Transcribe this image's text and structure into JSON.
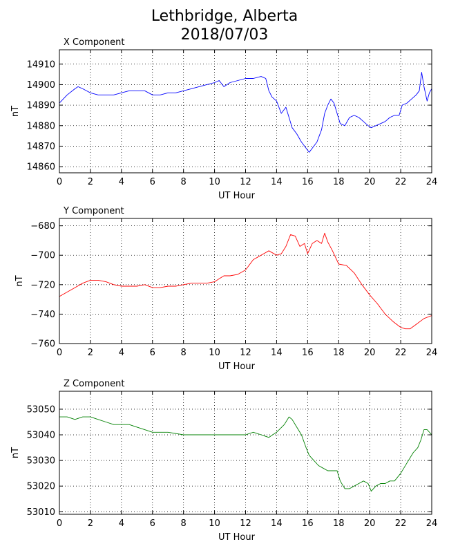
{
  "figure": {
    "title_line1": "Lethbridge, Alberta",
    "title_line2": "2018/07/03"
  },
  "colors": {
    "x": "#0000ff",
    "y": "#ff0000",
    "z": "#008000"
  },
  "chart_data": [
    {
      "type": "line",
      "title": "X Component",
      "xlabel": "UT Hour",
      "ylabel": "nT",
      "xlim": [
        0,
        24
      ],
      "ylim": [
        14857,
        14917
      ],
      "xticks": [
        0,
        2,
        4,
        6,
        8,
        10,
        12,
        14,
        16,
        18,
        20,
        22,
        24
      ],
      "yticks": [
        14860,
        14870,
        14880,
        14890,
        14900,
        14910
      ],
      "grid": true,
      "series": [
        {
          "color": "#0000ff",
          "x": [
            0,
            0.5,
            1,
            1.2,
            1.5,
            2,
            2.5,
            3,
            3.5,
            4,
            4.5,
            5,
            5.5,
            6,
            6.5,
            7,
            7.5,
            8,
            8.5,
            9,
            9.5,
            10,
            10.3,
            10.6,
            11,
            11.5,
            12,
            12.5,
            13,
            13.3,
            13.5,
            13.7,
            14,
            14.3,
            14.6,
            14.8,
            15,
            15.3,
            15.6,
            15.9,
            16.1,
            16.3,
            16.6,
            16.9,
            17.1,
            17.3,
            17.5,
            17.7,
            17.9,
            18.1,
            18.4,
            18.7,
            19,
            19.3,
            19.6,
            19.9,
            20.1,
            20.4,
            20.7,
            21,
            21.3,
            21.6,
            21.9,
            22.1,
            22.4,
            22.7,
            23,
            23.2,
            23.35,
            23.5,
            23.7,
            23.85,
            24
          ],
          "y": [
            14891,
            14895,
            14898,
            14899,
            14898,
            14896,
            14895,
            14895,
            14895,
            14896,
            14897,
            14897,
            14897,
            14895,
            14895,
            14896,
            14896,
            14897,
            14898,
            14899,
            14900,
            14901,
            14902,
            14899,
            14901,
            14902,
            14903,
            14903,
            14904,
            14903,
            14897,
            14894,
            14892,
            14886,
            14889,
            14884,
            14879,
            14876,
            14872,
            14869,
            14867,
            14869,
            14872,
            14878,
            14886,
            14890,
            14893,
            14891,
            14886,
            14881,
            14880,
            14884,
            14885,
            14884,
            14882,
            14880,
            14879,
            14880,
            14881,
            14882,
            14884,
            14885,
            14885,
            14890,
            14891,
            14893,
            14895,
            14897,
            14906,
            14899,
            14892,
            14896,
            14898
          ]
        }
      ]
    },
    {
      "type": "line",
      "title": "Y Component",
      "xlabel": "UT Hour",
      "ylabel": "nT",
      "xlim": [
        0,
        24
      ],
      "ylim": [
        -760,
        -675
      ],
      "xticks": [
        0,
        2,
        4,
        6,
        8,
        10,
        12,
        14,
        16,
        18,
        20,
        22,
        24
      ],
      "yticks": [
        -760,
        -740,
        -720,
        -700,
        -680
      ],
      "grid": true,
      "series": [
        {
          "color": "#ff0000",
          "x": [
            0,
            0.5,
            1,
            1.5,
            2,
            2.5,
            3,
            3.5,
            4,
            4.5,
            5,
            5.5,
            6,
            6.5,
            7,
            7.5,
            8,
            8.5,
            9,
            9.5,
            10,
            10.3,
            10.6,
            11,
            11.5,
            12,
            12.5,
            13,
            13.5,
            14,
            14.3,
            14.6,
            14.9,
            15.2,
            15.5,
            15.8,
            16,
            16.3,
            16.6,
            16.9,
            17.1,
            17.3,
            17.6,
            18,
            18.5,
            19,
            19.5,
            20,
            20.5,
            21,
            21.5,
            22,
            22.3,
            22.6,
            23,
            23.5,
            24
          ],
          "y": [
            -728,
            -725,
            -722,
            -719,
            -717,
            -717,
            -718,
            -720,
            -721,
            -721,
            -721,
            -720,
            -722,
            -722,
            -721,
            -721,
            -720,
            -719,
            -719,
            -719,
            -718,
            -716,
            -714,
            -714,
            -713,
            -710,
            -703,
            -700,
            -697,
            -700,
            -699,
            -694,
            -686,
            -687,
            -694,
            -692,
            -699,
            -692,
            -690,
            -692,
            -685,
            -691,
            -697,
            -706,
            -707,
            -712,
            -720,
            -727,
            -733,
            -740,
            -745,
            -749,
            -750,
            -750,
            -747,
            -743,
            -741
          ]
        }
      ]
    },
    {
      "type": "line",
      "title": "Z Component",
      "xlabel": "UT Hour",
      "ylabel": "nT",
      "xlim": [
        0,
        24
      ],
      "ylim": [
        53009,
        53057
      ],
      "xticks": [
        0,
        2,
        4,
        6,
        8,
        10,
        12,
        14,
        16,
        18,
        20,
        22,
        24
      ],
      "yticks": [
        53010,
        53020,
        53030,
        53040,
        53050
      ],
      "grid": true,
      "series": [
        {
          "color": "#008000",
          "x": [
            0,
            0.5,
            1,
            1.5,
            2,
            2.5,
            3,
            3.5,
            4,
            4.5,
            5,
            5.5,
            6,
            7,
            8,
            9,
            10,
            11,
            12,
            12.5,
            13,
            13.5,
            14,
            14.5,
            14.8,
            15,
            15.3,
            15.6,
            15.9,
            16.1,
            16.4,
            16.7,
            17,
            17.3,
            17.6,
            17.9,
            18.1,
            18.4,
            18.7,
            19,
            19.3,
            19.6,
            19.9,
            20.1,
            20.4,
            20.7,
            21,
            21.3,
            21.6,
            22,
            22.4,
            22.8,
            23.1,
            23.3,
            23.5,
            23.7,
            24
          ],
          "y": [
            53047,
            53047,
            53046,
            53047,
            53047,
            53046,
            53045,
            53044,
            53044,
            53044,
            53043,
            53042,
            53041,
            53041,
            53040,
            53040,
            53040,
            53040,
            53040,
            53041,
            53040,
            53039,
            53041,
            53044,
            53047,
            53046,
            53043,
            53040,
            53035,
            53032,
            53030,
            53028,
            53027,
            53026,
            53026,
            53026,
            53022,
            53019,
            53019,
            53020,
            53021,
            53022,
            53021,
            53018,
            53020,
            53021,
            53021,
            53022,
            53022,
            53025,
            53029,
            53033,
            53035,
            53038,
            53042,
            53042,
            53040
          ]
        }
      ]
    }
  ]
}
